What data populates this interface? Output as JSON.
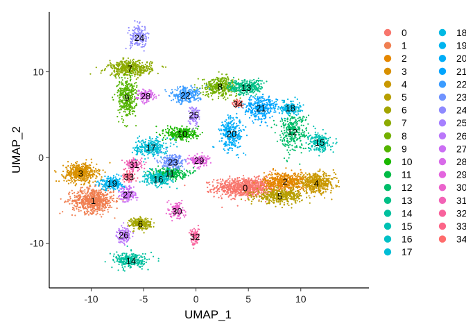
{
  "chart_data": {
    "type": "scatter",
    "xlabel": "UMAP_1",
    "ylabel": "UMAP_2",
    "xlim": [
      -14,
      16.5
    ],
    "ylim": [
      -15.2,
      17
    ],
    "x_ticks": [
      -10,
      -5,
      0,
      5,
      10
    ],
    "y_ticks": [
      -10,
      0,
      10
    ],
    "x_tick_labels": [
      "-10",
      "-5",
      "0",
      "5",
      "10"
    ],
    "y_tick_labels": [
      "-10",
      "0",
      "10"
    ],
    "grid": false,
    "legend_position": "right",
    "clusters": [
      {
        "id": "0",
        "color": "#F8766D",
        "x": 4.7,
        "y": -3.5,
        "spread": [
          2.6,
          1.0
        ],
        "n": 900
      },
      {
        "id": "1",
        "color": "#F07F51",
        "x": -9.8,
        "y": -5.0,
        "spread": [
          1.8,
          1.3
        ],
        "n": 650
      },
      {
        "id": "2",
        "color": "#E58700",
        "x": 8.5,
        "y": -2.8,
        "spread": [
          1.8,
          1.0
        ],
        "n": 500
      },
      {
        "id": "3",
        "color": "#D89000",
        "x": -11.0,
        "y": -1.8,
        "spread": [
          1.4,
          1.0
        ],
        "n": 500
      },
      {
        "id": "4",
        "color": "#C99800",
        "x": 11.5,
        "y": -3.0,
        "spread": [
          1.6,
          1.0
        ],
        "n": 450
      },
      {
        "id": "5",
        "color": "#B79F00",
        "x": 8.0,
        "y": -4.5,
        "spread": [
          2.0,
          0.7
        ],
        "n": 400
      },
      {
        "id": "6",
        "color": "#A3A500",
        "x": -5.3,
        "y": -7.7,
        "spread": [
          0.9,
          0.6
        ],
        "n": 250
      },
      {
        "id": "7",
        "color": "#8DAB00",
        "x": -6.3,
        "y": 10.4,
        "spread": [
          1.9,
          0.8
        ],
        "n": 450
      },
      {
        "id": "8",
        "color": "#74B000",
        "x": 2.3,
        "y": 8.3,
        "spread": [
          1.5,
          1.0
        ],
        "n": 350
      },
      {
        "id": "9",
        "color": "#54B400",
        "x": -6.6,
        "y": 7.0,
        "spread": [
          0.8,
          2.2
        ],
        "n": 350
      },
      {
        "id": "10",
        "color": "#1BB800",
        "x": -1.3,
        "y": 2.8,
        "spread": [
          1.4,
          0.7
        ],
        "n": 300
      },
      {
        "id": "11",
        "color": "#00BB45",
        "x": -2.5,
        "y": -1.8,
        "spread": [
          1.5,
          0.6
        ],
        "n": 260
      },
      {
        "id": "12",
        "color": "#00BD6A",
        "x": 9.2,
        "y": 3.0,
        "spread": [
          1.3,
          2.0
        ],
        "n": 300
      },
      {
        "id": "13",
        "color": "#00BF86",
        "x": 4.8,
        "y": 8.2,
        "spread": [
          1.5,
          0.8
        ],
        "n": 300
      },
      {
        "id": "14",
        "color": "#00C09E",
        "x": -6.2,
        "y": -12.0,
        "spread": [
          1.5,
          0.8
        ],
        "n": 260
      },
      {
        "id": "15",
        "color": "#00C1B3",
        "x": 11.8,
        "y": 1.8,
        "spread": [
          0.9,
          1.0
        ],
        "n": 220
      },
      {
        "id": "16",
        "color": "#00C0C6",
        "x": -3.6,
        "y": -2.5,
        "spread": [
          1.2,
          0.7
        ],
        "n": 240
      },
      {
        "id": "17",
        "color": "#00BDD6",
        "x": -4.3,
        "y": 1.2,
        "spread": [
          1.4,
          1.0
        ],
        "n": 260
      },
      {
        "id": "18",
        "color": "#00B9E3",
        "x": 9.0,
        "y": 5.8,
        "spread": [
          0.9,
          0.7
        ],
        "n": 180
      },
      {
        "id": "19",
        "color": "#00B4EF",
        "x": -8.0,
        "y": -3.0,
        "spread": [
          1.0,
          0.7
        ],
        "n": 220
      },
      {
        "id": "20",
        "color": "#00ADF8",
        "x": 3.4,
        "y": 2.8,
        "spread": [
          1.0,
          1.8
        ],
        "n": 280
      },
      {
        "id": "21",
        "color": "#00A5FE",
        "x": 6.2,
        "y": 5.8,
        "spread": [
          1.4,
          1.3
        ],
        "n": 320
      },
      {
        "id": "22",
        "color": "#3B9CFF",
        "x": -1.0,
        "y": 7.3,
        "spread": [
          1.3,
          0.8
        ],
        "n": 260
      },
      {
        "id": "23",
        "color": "#6F93FF",
        "x": -2.2,
        "y": -0.5,
        "spread": [
          1.0,
          0.7
        ],
        "n": 220
      },
      {
        "id": "24",
        "color": "#8F8AFF",
        "x": -5.4,
        "y": 14.0,
        "spread": [
          0.8,
          1.2
        ],
        "n": 160
      },
      {
        "id": "25",
        "color": "#A680FF",
        "x": -0.2,
        "y": 5.0,
        "spread": [
          0.5,
          1.0
        ],
        "n": 100
      },
      {
        "id": "26",
        "color": "#BA77FA",
        "x": -6.9,
        "y": -9.0,
        "spread": [
          0.6,
          0.8
        ],
        "n": 140
      },
      {
        "id": "27",
        "color": "#CB6FF4",
        "x": -6.5,
        "y": -4.3,
        "spread": [
          0.7,
          0.8
        ],
        "n": 160
      },
      {
        "id": "28",
        "color": "#D86AE9",
        "x": -4.8,
        "y": 7.2,
        "spread": [
          0.8,
          0.6
        ],
        "n": 140
      },
      {
        "id": "29",
        "color": "#E365DE",
        "x": 0.3,
        "y": -0.3,
        "spread": [
          0.8,
          0.6
        ],
        "n": 160
      },
      {
        "id": "30",
        "color": "#EB63CC",
        "x": -1.8,
        "y": -6.2,
        "spread": [
          0.6,
          0.9
        ],
        "n": 120
      },
      {
        "id": "31",
        "color": "#F263B6",
        "x": -5.9,
        "y": -0.8,
        "spread": [
          0.7,
          0.6
        ],
        "n": 140
      },
      {
        "id": "32",
        "color": "#F8629C",
        "x": -0.1,
        "y": -9.2,
        "spread": [
          0.4,
          0.9
        ],
        "n": 90
      },
      {
        "id": "33",
        "color": "#FC6588",
        "x": -6.4,
        "y": -2.2,
        "spread": [
          0.5,
          0.5
        ],
        "n": 100
      },
      {
        "id": "34",
        "color": "#FF6C6C",
        "x": 4.0,
        "y": 6.3,
        "spread": [
          0.4,
          0.4
        ],
        "n": 60
      }
    ]
  }
}
